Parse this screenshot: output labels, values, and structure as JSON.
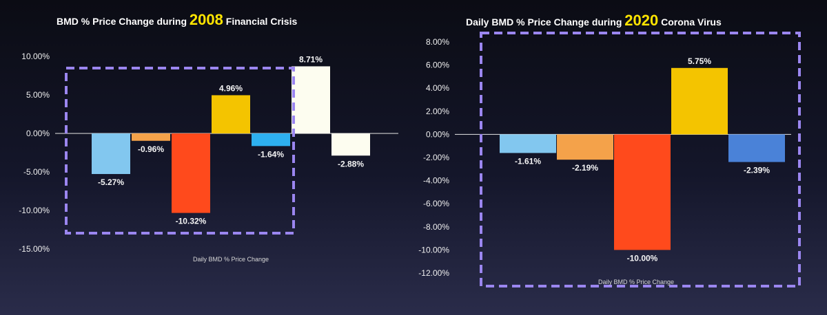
{
  "chart_data": [
    {
      "type": "bar",
      "title": {
        "prefix": "BMD % Price Change during ",
        "year": "2008",
        "suffix": " Financial Crisis"
      },
      "xlabel": "Daily BMD % Price Change",
      "ylim": [
        -15,
        10
      ],
      "ticks": [
        "10.00%",
        "5.00%",
        "0.00%",
        "-5.00%",
        "-10.00%",
        "-15.00%"
      ],
      "tick_values": [
        10,
        5,
        0,
        -5,
        -10,
        -15
      ],
      "values": [
        -5.27,
        -0.96,
        -10.32,
        4.96,
        -1.64,
        8.71,
        -2.88
      ],
      "labels": [
        "-5.27%",
        "-0.96%",
        "-10.32%",
        "4.96%",
        "-1.64%",
        "8.71%",
        "-2.88%"
      ],
      "colors": [
        "#82c7ef",
        "#f4a24a",
        "#ff4a1c",
        "#f4c400",
        "#2eb0f0",
        "#fdfdf0",
        "#fdfdf0"
      ]
    },
    {
      "type": "bar",
      "title": {
        "prefix": "Daily BMD % Price Change during ",
        "year": "2020",
        "suffix": " Corona Virus"
      },
      "xlabel": "Daily BMD % Price Change",
      "ylim": [
        -12,
        8
      ],
      "ticks": [
        "8.00%",
        "6.00%",
        "4.00%",
        "2.00%",
        "0.00%",
        "-2.00%",
        "-4.00%",
        "-6.00%",
        "-8.00%",
        "-10.00%",
        "-12.00%"
      ],
      "tick_values": [
        8,
        6,
        4,
        2,
        0,
        -2,
        -4,
        -6,
        -8,
        -10,
        -12
      ],
      "values": [
        -1.61,
        -2.19,
        -10.0,
        5.75,
        -2.39
      ],
      "labels": [
        "-1.61%",
        "-2.19%",
        "-10.00%",
        "5.75%",
        "-2.39%"
      ],
      "colors": [
        "#82c7ef",
        "#f4a24a",
        "#ff4a1c",
        "#f4c400",
        "#4a82d8"
      ]
    }
  ],
  "highlight_color": "#9b86f0"
}
